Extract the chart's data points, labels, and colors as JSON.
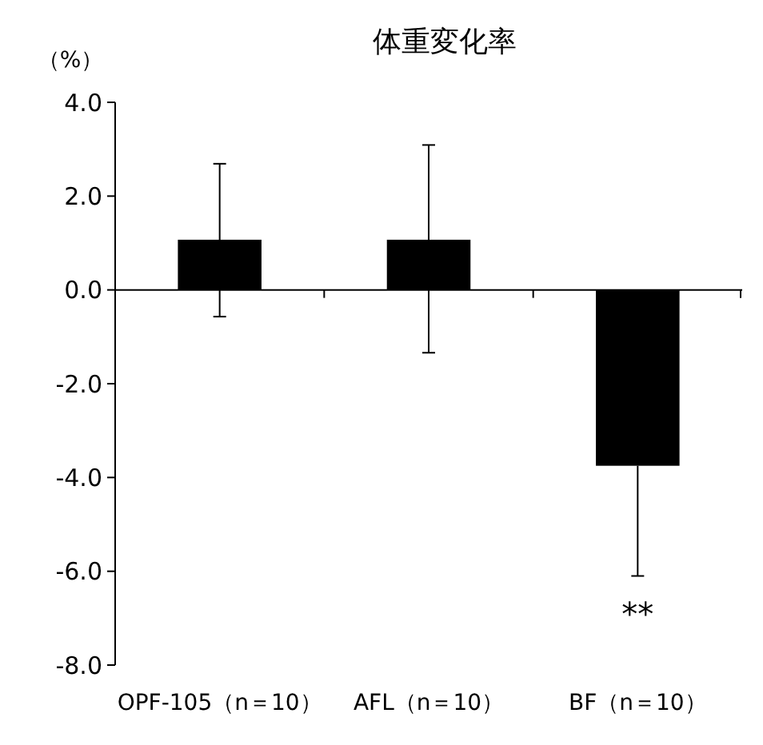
{
  "chart_data": {
    "type": "bar",
    "title": "体重変化率",
    "ylabel": "（%）",
    "categories": [
      "OPF-105（n＝10）",
      "AFL（n＝10）",
      "BF（n＝10）"
    ],
    "values": [
      1.07,
      1.07,
      -3.75
    ],
    "color": "#000000",
    "errors": [
      [
        -0.57,
        2.69
      ],
      [
        -1.34,
        3.09
      ],
      [
        -6.1,
        -3.75
      ]
    ],
    "ylim": [
      -8,
      4
    ],
    "yticks": [
      {
        "value": -8,
        "label": "-8.0"
      },
      {
        "value": -6,
        "label": "-6.0"
      },
      {
        "value": -4,
        "label": "-4.0"
      },
      {
        "value": -2,
        "label": "-2.0"
      },
      {
        "value": 0,
        "label": "0.0"
      },
      {
        "value": 2,
        "label": "2.0"
      },
      {
        "value": 4,
        "label": "4.0"
      }
    ],
    "annotations": [
      "**"
    ]
  }
}
